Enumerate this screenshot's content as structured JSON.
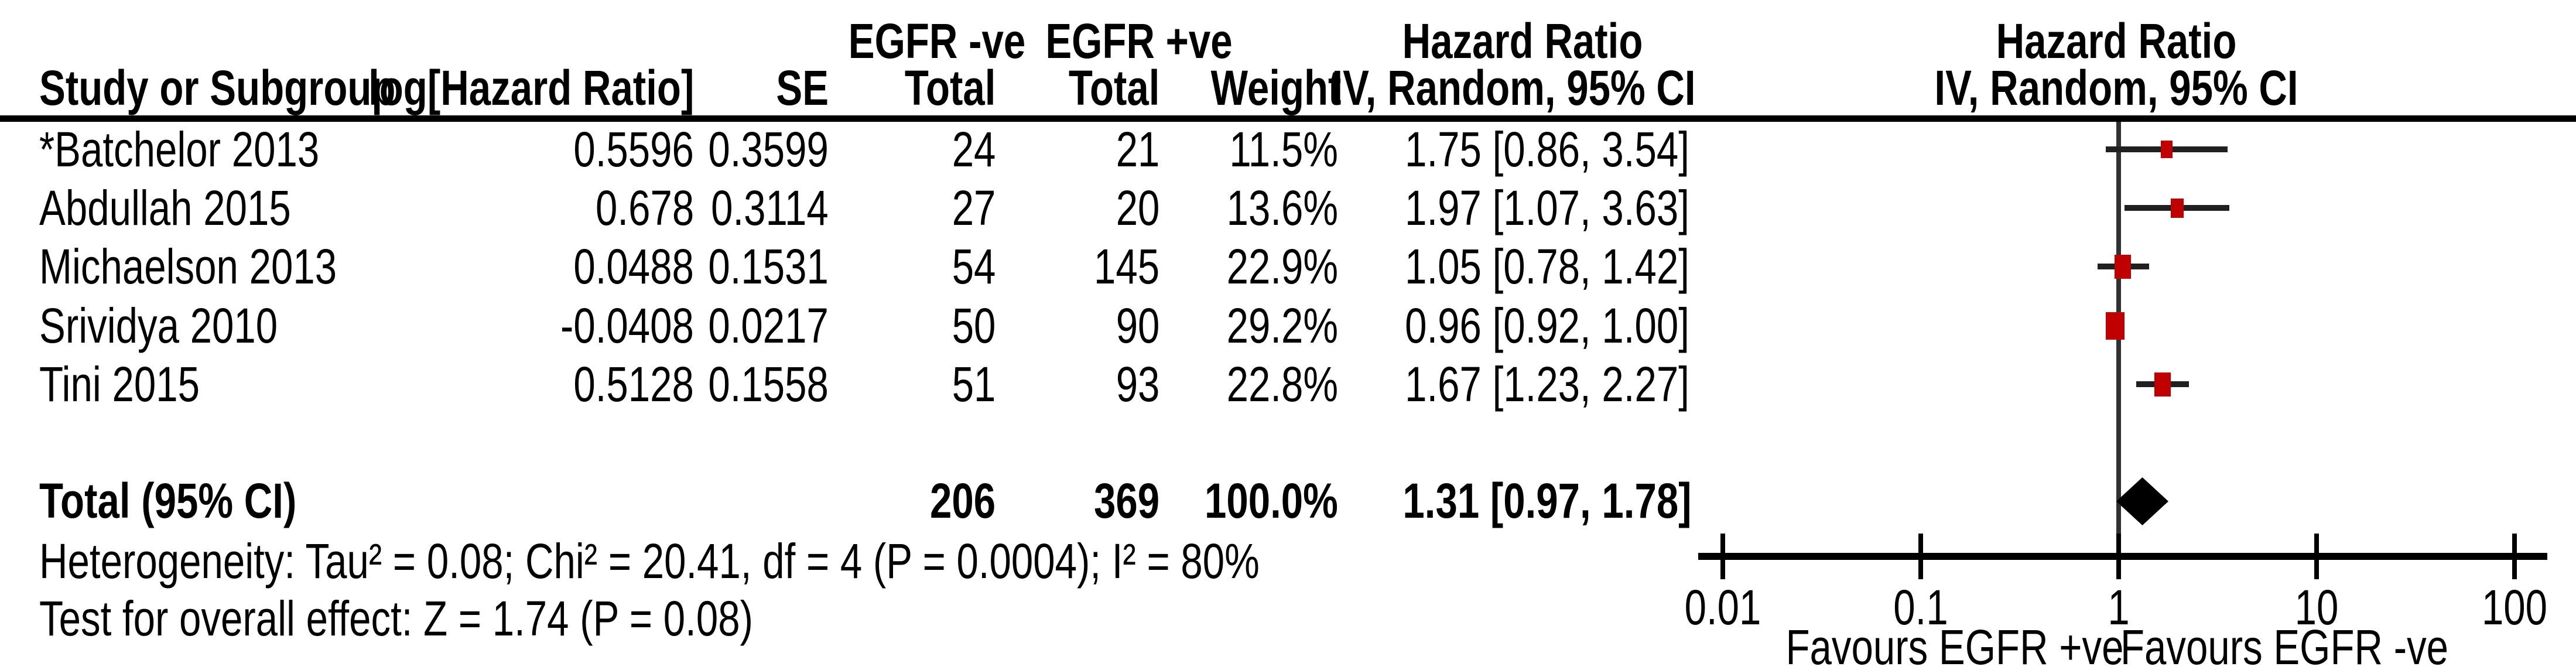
{
  "header": {
    "group": {
      "egfr_neg": "EGFR -ve",
      "egfr_pos": "EGFR +ve",
      "hazard_ratio_table": "Hazard Ratio",
      "hazard_ratio_plot": "Hazard Ratio"
    },
    "columns": {
      "study": "Study or Subgroup",
      "log_hr": "log[Hazard Ratio]",
      "se": "SE",
      "total_neg": "Total",
      "total_pos": "Total",
      "weight": "Weight",
      "ci_table": "IV, Random, 95% CI",
      "ci_plot": "IV, Random, 95% CI"
    }
  },
  "chart_data": {
    "type": "forest",
    "effect_measure": "Hazard Ratio",
    "model": "IV, Random, 95% CI",
    "x_axis": {
      "scale": "log10",
      "min": 0.01,
      "max": 100,
      "ticks": [
        0.01,
        0.1,
        1,
        10,
        100
      ],
      "tick_labels": [
        "0.01",
        "0.1",
        "1",
        "10",
        "100"
      ],
      "reference_line": 1
    },
    "studies": [
      {
        "name": "*Batchelor 2013",
        "log_hr": "0.5596",
        "se": "0.3599",
        "total_neg": "24",
        "total_pos": "21",
        "weight": "11.5%",
        "weight_pct": 11.5,
        "ci_text": "1.75 [0.86, 3.54]",
        "hr": 1.75,
        "ci_low": 0.86,
        "ci_high": 3.54
      },
      {
        "name": "Abdullah 2015",
        "log_hr": "0.678",
        "se": "0.3114",
        "total_neg": "27",
        "total_pos": "20",
        "weight": "13.6%",
        "weight_pct": 13.6,
        "ci_text": "1.97 [1.07, 3.63]",
        "hr": 1.97,
        "ci_low": 1.07,
        "ci_high": 3.63
      },
      {
        "name": "Michaelson 2013",
        "log_hr": "0.0488",
        "se": "0.1531",
        "total_neg": "54",
        "total_pos": "145",
        "weight": "22.9%",
        "weight_pct": 22.9,
        "ci_text": "1.05 [0.78, 1.42]",
        "hr": 1.05,
        "ci_low": 0.78,
        "ci_high": 1.42
      },
      {
        "name": "Srividya 2010",
        "log_hr": "-0.0408",
        "se": "0.0217",
        "total_neg": "50",
        "total_pos": "90",
        "weight": "29.2%",
        "weight_pct": 29.2,
        "ci_text": "0.96 [0.92, 1.00]",
        "hr": 0.96,
        "ci_low": 0.92,
        "ci_high": 1.0
      },
      {
        "name": "Tini 2015",
        "log_hr": "0.5128",
        "se": "0.1558",
        "total_neg": "51",
        "total_pos": "93",
        "weight": "22.8%",
        "weight_pct": 22.8,
        "ci_text": "1.67 [1.23, 2.27]",
        "hr": 1.67,
        "ci_low": 1.23,
        "ci_high": 2.27
      }
    ],
    "total": {
      "label": "Total (95% CI)",
      "total_neg": "206",
      "total_pos": "369",
      "weight": "100.0%",
      "ci_text": "1.31 [0.97, 1.78]",
      "hr": 1.31,
      "ci_low": 0.97,
      "ci_high": 1.78
    },
    "footnotes": {
      "heterogeneity": "Heterogeneity: Tau² = 0.08; Chi² = 20.41, df = 4 (P = 0.0004); I² = 80%",
      "overall_effect": "Test for overall effect: Z = 1.74 (P = 0.08)",
      "favours_left": "Favours EGFR +ve",
      "favours_right": "Favours EGFR -ve"
    },
    "colors": {
      "square": "#c00000",
      "ci_line": "#202020",
      "diamond": "#000000",
      "reference_line": "#303030",
      "axis": "#000000",
      "text": "#000000"
    }
  }
}
